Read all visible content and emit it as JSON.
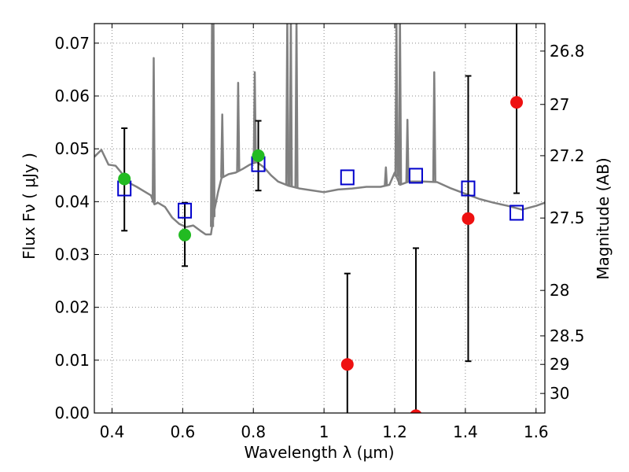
{
  "chart_data": {
    "type": "scatter",
    "xlabel": "Wavelength  λ (μm)",
    "ylabel": "Flux  Fν  ( μJy )",
    "y2label": "Magnitude (AB)",
    "xlim": [
      0.35,
      1.625
    ],
    "ylim": [
      0.0,
      0.0737
    ],
    "grid": true,
    "x_ticks": [
      0.4,
      0.6,
      0.8,
      1.0,
      1.2,
      1.4,
      1.6
    ],
    "x_tick_labels": [
      "0.4",
      "0.6",
      "0.8",
      "1",
      "1.2",
      "1.4",
      "1.6"
    ],
    "y_ticks": [
      0.0,
      0.01,
      0.02,
      0.03,
      0.04,
      0.05,
      0.06,
      0.07
    ],
    "y_tick_labels": [
      "0.00",
      "0.01",
      "0.02",
      "0.03",
      "0.04",
      "0.05",
      "0.06",
      "0.07"
    ],
    "mag_ticks": [
      {
        "label": "26.8",
        "flux": 0.0685
      },
      {
        "label": "27",
        "flux": 0.0584
      },
      {
        "label": "27.2",
        "flux": 0.0487
      },
      {
        "label": "27.5",
        "flux": 0.0369
      },
      {
        "label": "28",
        "flux": 0.0232
      },
      {
        "label": "28.5",
        "flux": 0.0146
      },
      {
        "label": "29",
        "flux": 0.0092
      },
      {
        "label": "30",
        "flux": 0.0037
      }
    ],
    "colors": {
      "model": "#808080",
      "model_photometry": "#0000cc",
      "detection": "#22bb22",
      "nondetection": "#ee1111",
      "errorbar": "#000000",
      "grid": "#888888"
    },
    "series": [
      {
        "name": "observed photometry (detected)",
        "marker": "green-circle",
        "x": [
          0.435,
          0.606,
          0.814
        ],
        "y": [
          0.0443,
          0.0337,
          0.0487
        ],
        "yerr_low": [
          0.0345,
          0.0278,
          0.0421
        ],
        "yerr_high": [
          0.0539,
          0.0398,
          0.0553
        ]
      },
      {
        "name": "observed photometry (low S/N)",
        "marker": "red-circle",
        "x": [
          1.066,
          1.26,
          1.408,
          1.545
        ],
        "y": [
          0.0092,
          -0.0005,
          0.0368,
          0.0588
        ],
        "yerr_low": [
          -0.01,
          -0.01,
          0.0098,
          0.0416
        ],
        "yerr_high": [
          0.0264,
          0.0312,
          0.0638,
          0.075
        ]
      },
      {
        "name": "model photometry",
        "marker": "blue-open-square",
        "x": [
          0.435,
          0.606,
          0.814,
          1.066,
          1.26,
          1.408,
          1.545
        ],
        "y": [
          0.0425,
          0.0383,
          0.0471,
          0.0446,
          0.0449,
          0.0425,
          0.0379
        ]
      },
      {
        "name": "model spectrum",
        "marker": "gray-line",
        "x": [
          0.35,
          0.37,
          0.39,
          0.41,
          0.43,
          0.45,
          0.47,
          0.49,
          0.51,
          0.52,
          0.53,
          0.55,
          0.57,
          0.59,
          0.61,
          0.63,
          0.65,
          0.665,
          0.68,
          0.69,
          0.7,
          0.71,
          0.73,
          0.75,
          0.77,
          0.79,
          0.81,
          0.83,
          0.85,
          0.87,
          0.9,
          0.93,
          0.96,
          1.0,
          1.04,
          1.08,
          1.12,
          1.16,
          1.185,
          1.2,
          1.215,
          1.24,
          1.28,
          1.32,
          1.36,
          1.4,
          1.44,
          1.48,
          1.52,
          1.56,
          1.6,
          1.625
        ],
        "y": [
          0.0485,
          0.0498,
          0.047,
          0.0468,
          0.0452,
          0.0435,
          0.0428,
          0.042,
          0.0412,
          0.0395,
          0.0398,
          0.039,
          0.037,
          0.0358,
          0.0352,
          0.0355,
          0.0345,
          0.0338,
          0.0338,
          0.0385,
          0.0418,
          0.0445,
          0.0452,
          0.0455,
          0.0462,
          0.047,
          0.0475,
          0.0465,
          0.045,
          0.0438,
          0.043,
          0.0425,
          0.0422,
          0.0418,
          0.0423,
          0.0425,
          0.0428,
          0.0428,
          0.0432,
          0.0455,
          0.0432,
          0.0438,
          0.0438,
          0.0437,
          0.0425,
          0.0415,
          0.0405,
          0.0398,
          0.0392,
          0.0385,
          0.0392,
          0.0398
        ]
      },
      {
        "name": "model emission lines",
        "marker": "gray-spike",
        "x": [
          0.518,
          0.683,
          0.687,
          0.712,
          0.757,
          0.804,
          0.896,
          0.906,
          0.922,
          1.175,
          1.205,
          1.215,
          1.236,
          1.312
        ],
        "y": [
          0.0672,
          0.075,
          0.075,
          0.0565,
          0.0625,
          0.0645,
          0.075,
          0.075,
          0.075,
          0.0465,
          0.075,
          0.075,
          0.0555,
          0.0645
        ]
      }
    ]
  }
}
